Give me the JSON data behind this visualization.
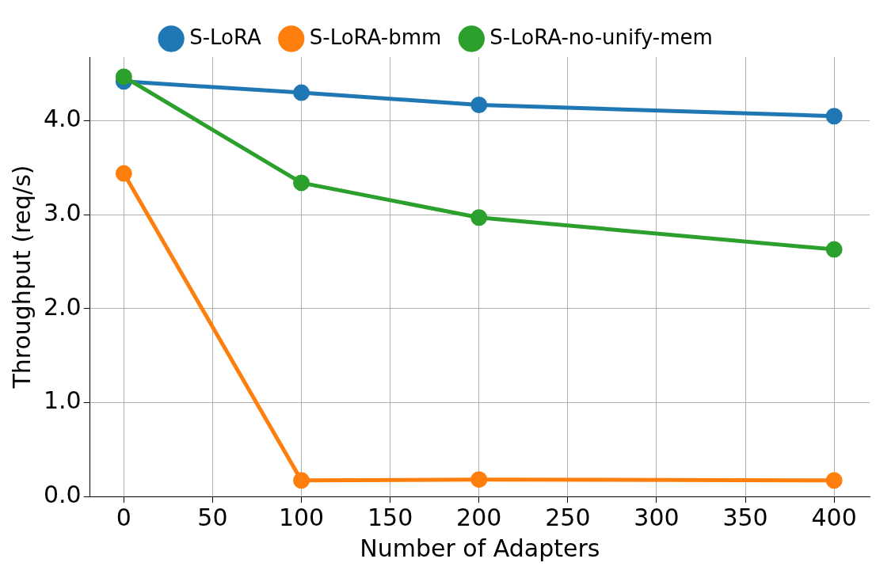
{
  "chart_data": {
    "type": "line",
    "xlabel": "Number of Adapters",
    "ylabel": "Throughput (req/s)",
    "x": [
      0,
      100,
      200,
      400
    ],
    "series": [
      {
        "name": "S-LoRA",
        "color": "#1f77b4",
        "values": [
          4.42,
          4.3,
          4.17,
          4.05
        ]
      },
      {
        "name": "S-LoRA-bmm",
        "color": "#ff7f0e",
        "values": [
          3.44,
          0.17,
          0.18,
          0.17
        ]
      },
      {
        "name": "S-LoRA-no-unify-mem",
        "color": "#2ca02c",
        "values": [
          4.47,
          3.34,
          2.97,
          2.63
        ]
      }
    ],
    "xlim": [
      -19,
      420
    ],
    "xticks": [
      0,
      50,
      100,
      150,
      200,
      250,
      300,
      350,
      400
    ],
    "ylim": [
      0,
      4.68
    ],
    "yticks": [
      {
        "value": 0,
        "label": "0.0"
      },
      {
        "value": 1,
        "label": "1.0"
      },
      {
        "value": 2,
        "label": "2.0"
      },
      {
        "value": 3,
        "label": "3.0"
      },
      {
        "value": 4,
        "label": "4.0"
      }
    ],
    "grid": true,
    "legend": "top",
    "marker": "circle",
    "line_style": "solid"
  }
}
